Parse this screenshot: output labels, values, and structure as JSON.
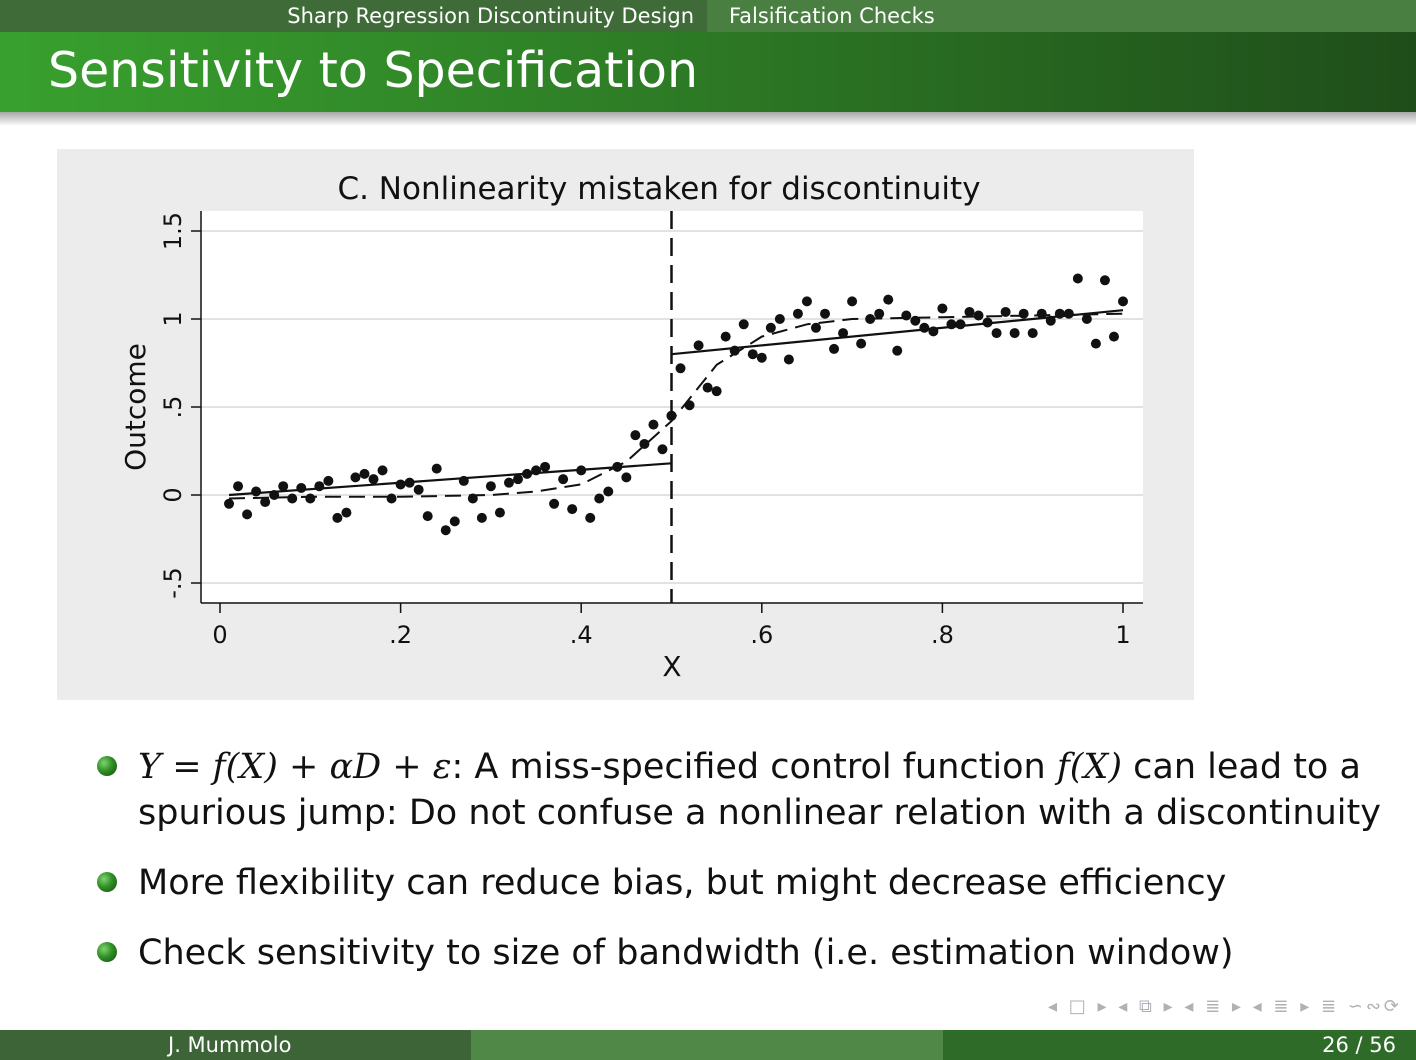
{
  "nav": {
    "section_1": "Sharp Regression Discontinuity Design",
    "section_2": "Falsification Checks"
  },
  "slide": {
    "title": "Sensitivity to Specification"
  },
  "bullets": {
    "b1_math_1": "Y = f(X) + αD + ε",
    "b1_text_1": ": A miss-specified control function ",
    "b1_math_2": "f(X)",
    "b1_text_2": " can lead to a",
    "b1_line_2": "spurious jump: Do not confuse a nonlinear relation with a discontinuity",
    "b2": "More flexibility can reduce bias, but might decrease efficiency",
    "b3": "Check sensitivity to size of bandwidth (i.e. estimation window)"
  },
  "nav_symbols": "◂ □ ▸ ◂ ⧉ ▸ ◂ ≣ ▸ ◂ ≣ ▸  ≣  ∽∾⟳",
  "footer": {
    "author": "J. Mummolo",
    "page": "26 / 56"
  },
  "chart_data": {
    "type": "scatter",
    "title": "C. Nonlinearity mistaken for discontinuity",
    "xlabel": "X",
    "ylabel": "Outcome",
    "xlim": [
      -0.02,
      1.02
    ],
    "ylim": [
      -0.6,
      1.58
    ],
    "x_ticks": [
      0,
      0.2,
      0.4,
      0.6,
      0.8,
      1
    ],
    "x_tick_labels": [
      "0",
      ".2",
      ".4",
      ".6",
      ".8",
      "1"
    ],
    "y_ticks": [
      -0.5,
      0,
      0.5,
      1,
      1.5
    ],
    "y_tick_labels": [
      "-.5",
      "0",
      ".5",
      "1",
      "1.5"
    ],
    "grid": true,
    "cutoff": 0.5,
    "linear_fit": {
      "left": [
        [
          0.01,
          0.0
        ],
        [
          0.5,
          0.18
        ]
      ],
      "right": [
        [
          0.5,
          0.8
        ],
        [
          1.0,
          1.05
        ]
      ]
    },
    "true_function": [
      [
        0.01,
        -0.02
      ],
      [
        0.1,
        -0.01
      ],
      [
        0.2,
        -0.01
      ],
      [
        0.3,
        0.0
      ],
      [
        0.35,
        0.02
      ],
      [
        0.4,
        0.06
      ],
      [
        0.45,
        0.19
      ],
      [
        0.5,
        0.42
      ],
      [
        0.55,
        0.74
      ],
      [
        0.6,
        0.9
      ],
      [
        0.65,
        0.97
      ],
      [
        0.7,
        1.0
      ],
      [
        0.8,
        1.01
      ],
      [
        0.9,
        1.02
      ],
      [
        1.0,
        1.03
      ]
    ],
    "points": [
      [
        0.01,
        -0.05
      ],
      [
        0.02,
        0.05
      ],
      [
        0.03,
        -0.11
      ],
      [
        0.04,
        0.02
      ],
      [
        0.05,
        -0.04
      ],
      [
        0.06,
        0.0
      ],
      [
        0.07,
        0.05
      ],
      [
        0.08,
        -0.02
      ],
      [
        0.09,
        0.04
      ],
      [
        0.1,
        -0.02
      ],
      [
        0.11,
        0.05
      ],
      [
        0.12,
        0.08
      ],
      [
        0.13,
        -0.13
      ],
      [
        0.14,
        -0.1
      ],
      [
        0.15,
        0.1
      ],
      [
        0.16,
        0.12
      ],
      [
        0.17,
        0.09
      ],
      [
        0.18,
        0.14
      ],
      [
        0.19,
        -0.02
      ],
      [
        0.2,
        0.06
      ],
      [
        0.21,
        0.07
      ],
      [
        0.22,
        0.03
      ],
      [
        0.23,
        -0.12
      ],
      [
        0.24,
        0.15
      ],
      [
        0.25,
        -0.2
      ],
      [
        0.26,
        -0.15
      ],
      [
        0.27,
        0.08
      ],
      [
        0.28,
        -0.02
      ],
      [
        0.29,
        -0.13
      ],
      [
        0.3,
        0.05
      ],
      [
        0.31,
        -0.1
      ],
      [
        0.32,
        0.07
      ],
      [
        0.33,
        0.09
      ],
      [
        0.34,
        0.12
      ],
      [
        0.35,
        0.14
      ],
      [
        0.36,
        0.16
      ],
      [
        0.37,
        -0.05
      ],
      [
        0.38,
        0.09
      ],
      [
        0.39,
        -0.08
      ],
      [
        0.4,
        0.14
      ],
      [
        0.41,
        -0.13
      ],
      [
        0.42,
        -0.02
      ],
      [
        0.43,
        0.02
      ],
      [
        0.44,
        0.16
      ],
      [
        0.45,
        0.1
      ],
      [
        0.46,
        0.34
      ],
      [
        0.47,
        0.29
      ],
      [
        0.48,
        0.4
      ],
      [
        0.49,
        0.26
      ],
      [
        0.5,
        0.45
      ],
      [
        0.5,
        0.45
      ],
      [
        0.51,
        0.72
      ],
      [
        0.52,
        0.51
      ],
      [
        0.53,
        0.85
      ],
      [
        0.54,
        0.61
      ],
      [
        0.55,
        0.59
      ],
      [
        0.56,
        0.9
      ],
      [
        0.57,
        0.82
      ],
      [
        0.58,
        0.97
      ],
      [
        0.59,
        0.8
      ],
      [
        0.6,
        0.78
      ],
      [
        0.61,
        0.95
      ],
      [
        0.62,
        1.0
      ],
      [
        0.63,
        0.77
      ],
      [
        0.64,
        1.03
      ],
      [
        0.65,
        1.1
      ],
      [
        0.66,
        0.95
      ],
      [
        0.67,
        1.03
      ],
      [
        0.68,
        0.83
      ],
      [
        0.69,
        0.92
      ],
      [
        0.7,
        1.1
      ],
      [
        0.71,
        0.86
      ],
      [
        0.72,
        1.0
      ],
      [
        0.73,
        1.03
      ],
      [
        0.74,
        1.11
      ],
      [
        0.75,
        0.82
      ],
      [
        0.76,
        1.02
      ],
      [
        0.77,
        0.99
      ],
      [
        0.78,
        0.95
      ],
      [
        0.79,
        0.93
      ],
      [
        0.8,
        1.06
      ],
      [
        0.81,
        0.97
      ],
      [
        0.82,
        0.97
      ],
      [
        0.83,
        1.04
      ],
      [
        0.84,
        1.02
      ],
      [
        0.85,
        0.98
      ],
      [
        0.86,
        0.92
      ],
      [
        0.87,
        1.04
      ],
      [
        0.88,
        0.92
      ],
      [
        0.89,
        1.03
      ],
      [
        0.9,
        0.92
      ],
      [
        0.91,
        1.03
      ],
      [
        0.92,
        0.99
      ],
      [
        0.93,
        1.03
      ],
      [
        0.94,
        1.03
      ],
      [
        0.95,
        1.23
      ],
      [
        0.96,
        1.0
      ],
      [
        0.97,
        0.86
      ],
      [
        0.98,
        1.22
      ],
      [
        0.99,
        0.9
      ],
      [
        1.0,
        1.1
      ]
    ]
  }
}
